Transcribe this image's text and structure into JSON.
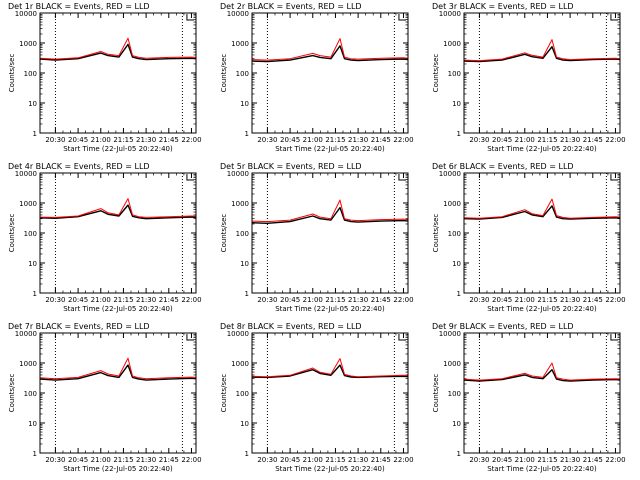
{
  "figure": {
    "xlabel": "Start Time (22-Jul-05 20:22:40)",
    "ylabel": "Counts/sec",
    "x_ticks": [
      "20:30",
      "20:45",
      "21:00",
      "21:15",
      "21:30",
      "21:45",
      "22:00"
    ],
    "y_ticks": [
      "1",
      "10",
      "100",
      "1000",
      "10000"
    ],
    "legend_text": "BLACK = Events, RED = LLD",
    "colors": {
      "events": "#000000",
      "lld": "#ff0000"
    }
  },
  "chart_data": [
    {
      "type": "line",
      "title": "Det 1r BLACK = Events, RED = LLD",
      "xlabel": "Start Time (22-Jul-05 20:22:40)",
      "ylabel": "Counts/sec",
      "yscale": "log",
      "ylim": [
        1,
        10000
      ],
      "xlim": [
        20.33,
        22.05
      ],
      "x": [
        20.33,
        20.5,
        20.75,
        21.0,
        21.08,
        21.2,
        21.3,
        21.35,
        21.42,
        21.5,
        21.75,
        22.0,
        22.05
      ],
      "series": [
        {
          "name": "Events",
          "values": [
            290,
            270,
            300,
            460,
            380,
            340,
            900,
            340,
            300,
            280,
            300,
            310,
            300
          ]
        },
        {
          "name": "LLD",
          "values": [
            310,
            290,
            320,
            520,
            420,
            380,
            1450,
            380,
            330,
            310,
            330,
            340,
            330
          ]
        }
      ],
      "vlines": [
        20.5,
        21.9
      ]
    },
    {
      "type": "line",
      "title": "Det 2r BLACK = Events, RED = LLD",
      "xlabel": "Start Time (22-Jul-05 20:22:40)",
      "ylabel": "Counts/sec",
      "yscale": "log",
      "ylim": [
        1,
        10000
      ],
      "xlim": [
        20.33,
        22.05
      ],
      "x": [
        20.33,
        20.5,
        20.75,
        21.0,
        21.08,
        21.2,
        21.3,
        21.35,
        21.42,
        21.5,
        21.75,
        22.0,
        22.05
      ],
      "series": [
        {
          "name": "Events",
          "values": [
            250,
            240,
            270,
            380,
            330,
            300,
            800,
            300,
            270,
            260,
            280,
            290,
            280
          ]
        },
        {
          "name": "LLD",
          "values": [
            280,
            270,
            300,
            450,
            380,
            340,
            1400,
            340,
            300,
            290,
            310,
            320,
            310
          ]
        }
      ],
      "vlines": [
        20.5,
        21.9
      ]
    },
    {
      "type": "line",
      "title": "Det 3r BLACK = Events, RED = LLD",
      "xlabel": "Start Time (22-Jul-05 20:22:40)",
      "ylabel": "Counts/sec",
      "yscale": "log",
      "ylim": [
        1,
        10000
      ],
      "xlim": [
        20.33,
        22.05
      ],
      "x": [
        20.33,
        20.5,
        20.75,
        21.0,
        21.08,
        21.2,
        21.3,
        21.35,
        21.42,
        21.5,
        21.75,
        22.0,
        22.05
      ],
      "series": [
        {
          "name": "Events",
          "values": [
            250,
            240,
            270,
            420,
            350,
            310,
            750,
            310,
            270,
            260,
            280,
            290,
            280
          ]
        },
        {
          "name": "LLD",
          "values": [
            270,
            260,
            290,
            470,
            390,
            340,
            1300,
            340,
            300,
            280,
            300,
            310,
            300
          ]
        }
      ],
      "vlines": [
        20.5,
        21.9
      ]
    },
    {
      "type": "line",
      "title": "Det 4r BLACK = Events, RED = LLD",
      "xlabel": "Start Time (22-Jul-05 20:22:40)",
      "ylabel": "Counts/sec",
      "yscale": "log",
      "ylim": [
        1,
        10000
      ],
      "xlim": [
        20.33,
        22.05
      ],
      "x": [
        20.33,
        20.5,
        20.75,
        21.0,
        21.08,
        21.2,
        21.3,
        21.35,
        21.42,
        21.5,
        21.75,
        22.0,
        22.05
      ],
      "series": [
        {
          "name": "Events",
          "values": [
            320,
            310,
            350,
            550,
            420,
            370,
            850,
            360,
            320,
            300,
            320,
            340,
            330
          ]
        },
        {
          "name": "LLD",
          "values": [
            340,
            330,
            370,
            650,
            470,
            400,
            1400,
            400,
            350,
            330,
            350,
            370,
            360
          ]
        }
      ],
      "vlines": [
        20.5,
        21.9
      ]
    },
    {
      "type": "line",
      "title": "Det 5r BLACK = Events, RED = LLD",
      "xlabel": "Start Time (22-Jul-05 20:22:40)",
      "ylabel": "Counts/sec",
      "yscale": "log",
      "ylim": [
        1,
        10000
      ],
      "xlim": [
        20.33,
        22.05
      ],
      "x": [
        20.33,
        20.5,
        20.75,
        21.0,
        21.08,
        21.2,
        21.3,
        21.35,
        21.42,
        21.5,
        21.75,
        22.0,
        22.05
      ],
      "series": [
        {
          "name": "Events",
          "values": [
            220,
            210,
            240,
            370,
            300,
            270,
            700,
            270,
            240,
            230,
            250,
            260,
            250
          ]
        },
        {
          "name": "LLD",
          "values": [
            250,
            240,
            270,
            430,
            340,
            300,
            1250,
            300,
            270,
            260,
            280,
            290,
            280
          ]
        }
      ],
      "vlines": [
        20.5,
        21.9
      ]
    },
    {
      "type": "line",
      "title": "Det 6r BLACK = Events, RED = LLD",
      "xlabel": "Start Time (22-Jul-05 20:22:40)",
      "ylabel": "Counts/sec",
      "yscale": "log",
      "ylim": [
        1,
        10000
      ],
      "xlim": [
        20.33,
        22.05
      ],
      "x": [
        20.33,
        20.5,
        20.75,
        21.0,
        21.08,
        21.2,
        21.3,
        21.35,
        21.42,
        21.5,
        21.75,
        22.0,
        22.05
      ],
      "series": [
        {
          "name": "Events",
          "values": [
            300,
            290,
            330,
            520,
            400,
            350,
            800,
            340,
            300,
            290,
            310,
            320,
            310
          ]
        },
        {
          "name": "LLD",
          "values": [
            320,
            310,
            350,
            600,
            440,
            380,
            1350,
            380,
            330,
            310,
            330,
            350,
            340
          ]
        }
      ],
      "vlines": [
        20.5,
        21.9
      ]
    },
    {
      "type": "line",
      "title": "Det 7r BLACK = Events, RED = LLD",
      "xlabel": "Start Time (22-Jul-05 20:22:40)",
      "ylabel": "Counts/sec",
      "yscale": "log",
      "ylim": [
        1,
        10000
      ],
      "xlim": [
        20.33,
        22.05
      ],
      "x": [
        20.33,
        20.5,
        20.75,
        21.0,
        21.08,
        21.2,
        21.3,
        21.35,
        21.42,
        21.5,
        21.75,
        22.0,
        22.05
      ],
      "series": [
        {
          "name": "Events",
          "values": [
            290,
            270,
            300,
            480,
            380,
            330,
            850,
            330,
            290,
            270,
            290,
            310,
            300
          ]
        },
        {
          "name": "LLD",
          "values": [
            320,
            300,
            330,
            560,
            430,
            370,
            1450,
            370,
            320,
            300,
            320,
            340,
            330
          ]
        }
      ],
      "vlines": [
        20.5,
        21.9
      ]
    },
    {
      "type": "line",
      "title": "Det 8r BLACK = Events, RED = LLD",
      "xlabel": "Start Time (22-Jul-05 20:22:40)",
      "ylabel": "Counts/sec",
      "yscale": "log",
      "ylim": [
        1,
        10000
      ],
      "xlim": [
        20.33,
        22.05
      ],
      "x": [
        20.33,
        20.5,
        20.75,
        21.0,
        21.08,
        21.2,
        21.3,
        21.35,
        21.42,
        21.5,
        21.75,
        22.0,
        22.05
      ],
      "series": [
        {
          "name": "Events",
          "values": [
            340,
            330,
            370,
            600,
            450,
            390,
            850,
            380,
            340,
            330,
            350,
            360,
            350
          ]
        },
        {
          "name": "LLD",
          "values": [
            360,
            350,
            390,
            680,
            490,
            420,
            1400,
            420,
            370,
            350,
            370,
            390,
            380
          ]
        }
      ],
      "vlines": [
        20.5,
        21.9
      ]
    },
    {
      "type": "line",
      "title": "Det 9r BLACK = Events, RED = LLD",
      "xlabel": "Start Time (22-Jul-05 20:22:40)",
      "ylabel": "Counts/sec",
      "yscale": "log",
      "ylim": [
        1,
        10000
      ],
      "xlim": [
        20.33,
        22.05
      ],
      "x": [
        20.33,
        20.5,
        20.75,
        21.0,
        21.08,
        21.2,
        21.3,
        21.35,
        21.42,
        21.5,
        21.75,
        22.0,
        22.05
      ],
      "series": [
        {
          "name": "Events",
          "values": [
            270,
            250,
            280,
            400,
            330,
            300,
            600,
            290,
            260,
            250,
            270,
            280,
            270
          ]
        },
        {
          "name": "LLD",
          "values": [
            290,
            270,
            300,
            450,
            370,
            330,
            1000,
            320,
            290,
            270,
            290,
            300,
            290
          ]
        }
      ],
      "vlines": [
        20.5,
        21.9
      ]
    }
  ]
}
